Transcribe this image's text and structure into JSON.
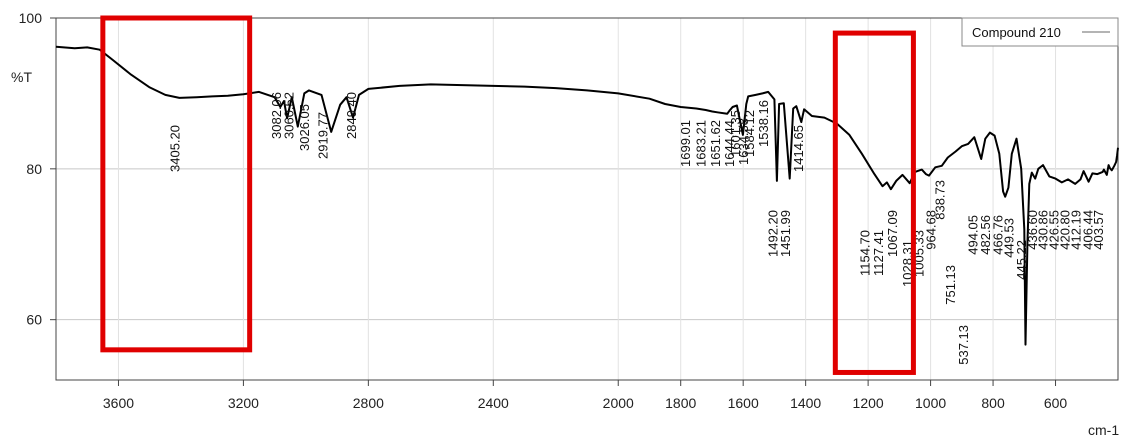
{
  "chart_data": {
    "type": "line",
    "title": "",
    "xlabel": "cm-1",
    "ylabel": "%T",
    "xlim": [
      3800,
      400
    ],
    "ylim": [
      52,
      100
    ],
    "x_ticks": [
      3600,
      3200,
      2800,
      2400,
      2000,
      1800,
      1600,
      1400,
      1200,
      1000,
      800,
      600
    ],
    "y_ticks": [
      60,
      80,
      100
    ],
    "grid": true,
    "legend": {
      "position": "top-right",
      "entries": [
        "Compound 210"
      ]
    },
    "series": [
      {
        "name": "Compound 210",
        "color": "#000000",
        "points": [
          [
            3800,
            96.2
          ],
          [
            3740,
            96.0
          ],
          [
            3700,
            96.1
          ],
          [
            3660,
            95.8
          ],
          [
            3620,
            94.5
          ],
          [
            3560,
            92.5
          ],
          [
            3500,
            90.8
          ],
          [
            3450,
            89.8
          ],
          [
            3405,
            89.4
          ],
          [
            3350,
            89.5
          ],
          [
            3300,
            89.6
          ],
          [
            3250,
            89.7
          ],
          [
            3200,
            89.9
          ],
          [
            3150,
            90.2
          ],
          [
            3100,
            89.5
          ],
          [
            3082,
            88.2
          ],
          [
            3070,
            89.0
          ],
          [
            3060,
            86.7
          ],
          [
            3045,
            89.5
          ],
          [
            3026,
            85.6
          ],
          [
            3005,
            90.0
          ],
          [
            2990,
            90.4
          ],
          [
            2950,
            89.8
          ],
          [
            2919,
            84.9
          ],
          [
            2890,
            88.5
          ],
          [
            2870,
            89.5
          ],
          [
            2849,
            86.8
          ],
          [
            2830,
            89.8
          ],
          [
            2800,
            90.6
          ],
          [
            2700,
            91.0
          ],
          [
            2600,
            91.2
          ],
          [
            2500,
            91.1
          ],
          [
            2400,
            91.0
          ],
          [
            2300,
            90.9
          ],
          [
            2200,
            90.7
          ],
          [
            2100,
            90.4
          ],
          [
            2000,
            90.0
          ],
          [
            1900,
            89.3
          ],
          [
            1850,
            88.6
          ],
          [
            1800,
            88.2
          ],
          [
            1750,
            88.0
          ],
          [
            1720,
            87.8
          ],
          [
            1699,
            87.6
          ],
          [
            1683,
            87.5
          ],
          [
            1651,
            87.3
          ],
          [
            1644,
            87.7
          ],
          [
            1634,
            88.2
          ],
          [
            1620,
            88.4
          ],
          [
            1601,
            84.5
          ],
          [
            1590,
            88.6
          ],
          [
            1584,
            89.6
          ],
          [
            1560,
            89.8
          ],
          [
            1538,
            90.0
          ],
          [
            1520,
            90.2
          ],
          [
            1500,
            89.2
          ],
          [
            1492,
            78.4
          ],
          [
            1485,
            88.6
          ],
          [
            1470,
            88.7
          ],
          [
            1451,
            78.7
          ],
          [
            1440,
            88.0
          ],
          [
            1430,
            88.3
          ],
          [
            1414,
            86.2
          ],
          [
            1405,
            87.9
          ],
          [
            1380,
            87.0
          ],
          [
            1340,
            86.8
          ],
          [
            1300,
            86.0
          ],
          [
            1260,
            84.5
          ],
          [
            1220,
            82.0
          ],
          [
            1180,
            79.3
          ],
          [
            1154,
            77.7
          ],
          [
            1140,
            78.2
          ],
          [
            1127,
            77.3
          ],
          [
            1110,
            78.4
          ],
          [
            1090,
            79.2
          ],
          [
            1067,
            78.1
          ],
          [
            1050,
            79.6
          ],
          [
            1028,
            79.9
          ],
          [
            1015,
            79.3
          ],
          [
            1005,
            79.1
          ],
          [
            985,
            80.2
          ],
          [
            964,
            80.4
          ],
          [
            945,
            81.5
          ],
          [
            920,
            82.3
          ],
          [
            900,
            83.0
          ],
          [
            880,
            83.3
          ],
          [
            860,
            84.2
          ],
          [
            838,
            81.3
          ],
          [
            825,
            84.0
          ],
          [
            810,
            84.8
          ],
          [
            795,
            84.4
          ],
          [
            780,
            82.0
          ],
          [
            768,
            77.0
          ],
          [
            761,
            76.3
          ],
          [
            751,
            77.5
          ],
          [
            740,
            82.0
          ],
          [
            725,
            84.0
          ],
          [
            710,
            80.0
          ],
          [
            700,
            72.0
          ],
          [
            696,
            56.7
          ],
          [
            690,
            70.0
          ],
          [
            684,
            78.0
          ],
          [
            676,
            79.5
          ],
          [
            665,
            78.7
          ],
          [
            655,
            80.0
          ],
          [
            640,
            80.5
          ],
          [
            620,
            79.0
          ],
          [
            600,
            78.7
          ],
          [
            580,
            78.2
          ],
          [
            560,
            78.6
          ],
          [
            537,
            78.0
          ],
          [
            520,
            78.6
          ],
          [
            510,
            79.7
          ],
          [
            494,
            78.3
          ],
          [
            482,
            79.4
          ],
          [
            466,
            79.3
          ],
          [
            449,
            79.6
          ],
          [
            445,
            79.9
          ],
          [
            436,
            79.2
          ],
          [
            430,
            80.5
          ],
          [
            426,
            80.1
          ],
          [
            420,
            79.8
          ],
          [
            412,
            80.4
          ],
          [
            406,
            80.9
          ],
          [
            403,
            81.8
          ],
          [
            400,
            82.8
          ]
        ]
      }
    ],
    "peak_labels": [
      "3405.20",
      "3082.06",
      "3060.52",
      "3026.05",
      "2919.77",
      "2849.40",
      "1699.01",
      "1683.21",
      "1651.62",
      "1644.44",
      "1634.38",
      "1601.35",
      "1584.12",
      "1538.16",
      "1492.20",
      "1451.99",
      "1414.65",
      "1154.70",
      "1127.41",
      "1067.09",
      "1028.31",
      "1005.33",
      "964.68",
      "838.73",
      "751.13",
      "537.13",
      "494.05",
      "482.56",
      "466.76",
      "449.53",
      "445.22",
      "436.60",
      "430.86",
      "426.55",
      "420.80",
      "412.19",
      "406.44",
      "403.57"
    ],
    "annotations": [
      {
        "type": "highlight-box",
        "color": "#e00000",
        "x_range": [
          3650,
          3180
        ],
        "y_range": [
          56,
          100
        ]
      },
      {
        "type": "highlight-box",
        "color": "#e00000",
        "x_range": [
          1305,
          1055
        ],
        "y_range": [
          53,
          98
        ]
      }
    ]
  },
  "peaks": [
    {
      "pos": 3405.2,
      "label": "3405.20"
    },
    {
      "pos": 3082.06,
      "label": "3082.06"
    },
    {
      "pos": 3060.52,
      "label": "3060.52"
    },
    {
      "pos": 3026.05,
      "label": "3026.05"
    },
    {
      "pos": 2919.77,
      "label": "2919.77"
    },
    {
      "pos": 2849.4,
      "label": "2849.40"
    },
    {
      "pos": 1699.01,
      "label": "1699.01"
    },
    {
      "pos": 1683.21,
      "label": "1683.21"
    },
    {
      "pos": 1651.62,
      "label": "1651.62"
    },
    {
      "pos": 1644.44,
      "label": "1644.44"
    },
    {
      "pos": 1634.38,
      "label": "1634.38"
    },
    {
      "pos": 1601.35,
      "label": "1601.35"
    },
    {
      "pos": 1584.12,
      "label": "1584.12"
    },
    {
      "pos": 1538.16,
      "label": "1538.16"
    },
    {
      "pos": 1492.2,
      "label": "1492.20"
    },
    {
      "pos": 1451.99,
      "label": "1451.99"
    },
    {
      "pos": 1414.65,
      "label": "1414.65"
    },
    {
      "pos": 1154.7,
      "label": "1154.70"
    },
    {
      "pos": 1127.41,
      "label": "1127.41"
    },
    {
      "pos": 1067.09,
      "label": "1067.09"
    },
    {
      "pos": 1028.31,
      "label": "1028.31"
    },
    {
      "pos": 1005.33,
      "label": "1005.33"
    },
    {
      "pos": 964.68,
      "label": "964.68"
    },
    {
      "pos": 838.73,
      "label": "838.73"
    },
    {
      "pos": 751.13,
      "label": "751.13"
    },
    {
      "pos": 537.13,
      "label": "537.13"
    },
    {
      "pos": 494.05,
      "label": "494.05"
    },
    {
      "pos": 482.56,
      "label": "482.56"
    },
    {
      "pos": 466.76,
      "label": "466.76"
    },
    {
      "pos": 449.53,
      "label": "449.53"
    },
    {
      "pos": 445.22,
      "label": "445.22"
    },
    {
      "pos": 436.6,
      "label": "436.60"
    },
    {
      "pos": 430.86,
      "label": "430.86"
    },
    {
      "pos": 426.55,
      "label": "426.55"
    },
    {
      "pos": 420.8,
      "label": "420.80"
    },
    {
      "pos": 412.19,
      "label": "412.19"
    },
    {
      "pos": 406.44,
      "label": "406.44"
    },
    {
      "pos": 403.57,
      "label": "403.57"
    }
  ]
}
